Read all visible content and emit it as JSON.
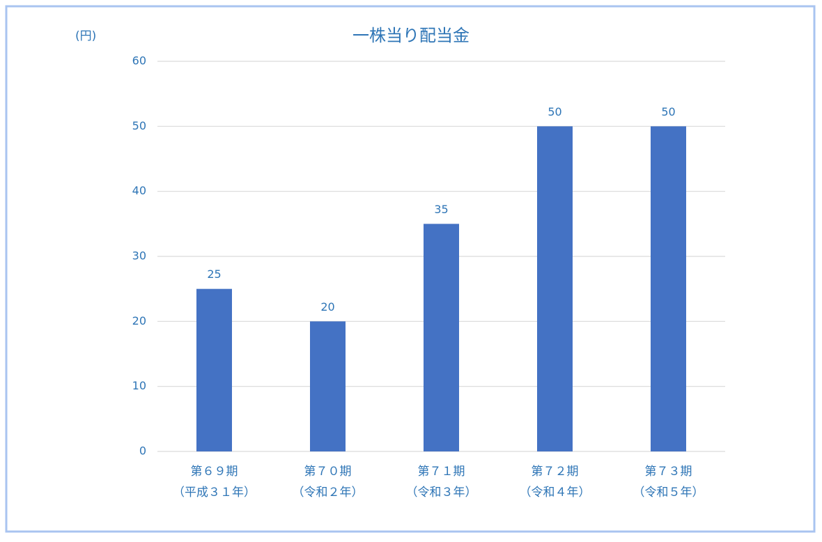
{
  "chart_data": {
    "type": "bar",
    "title": "一株当り配当金",
    "y_axis_label": "(円)",
    "categories": [
      [
        "第６９期",
        "（平成３１年）"
      ],
      [
        "第７０期",
        "（令和２年）"
      ],
      [
        "第７１期",
        "（令和３年）"
      ],
      [
        "第７２期",
        "（令和４年）"
      ],
      [
        "第７３期",
        "（令和５年）"
      ]
    ],
    "values": [
      25,
      20,
      35,
      50,
      50
    ],
    "color": "#4472c4",
    "ylim": [
      0,
      60
    ],
    "yticks": [
      0,
      10,
      20,
      30,
      40,
      50,
      60
    ],
    "grid": true
  }
}
